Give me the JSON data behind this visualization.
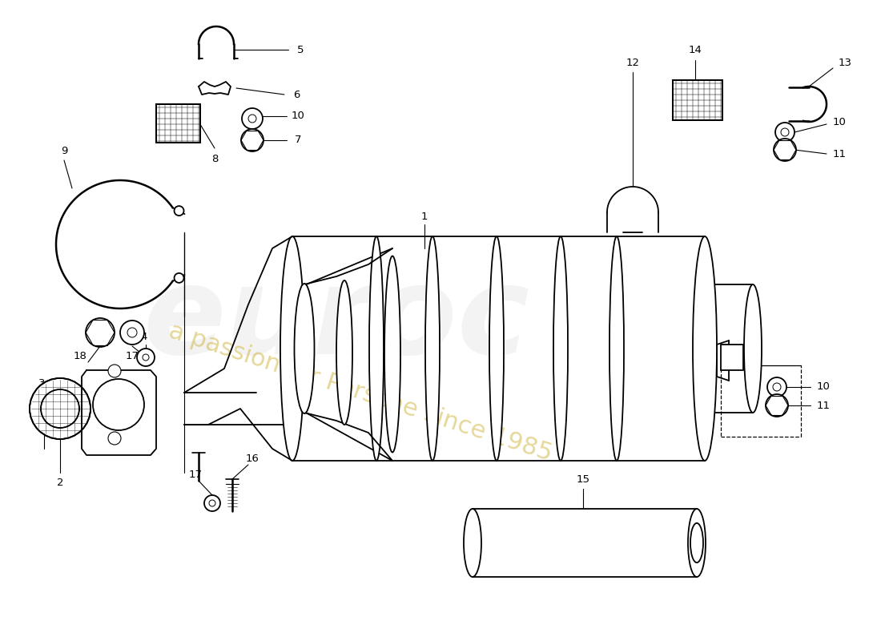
{
  "background_color": "#ffffff",
  "line_color": "#000000",
  "lw": 1.3,
  "label_fontsize": 9.5
}
